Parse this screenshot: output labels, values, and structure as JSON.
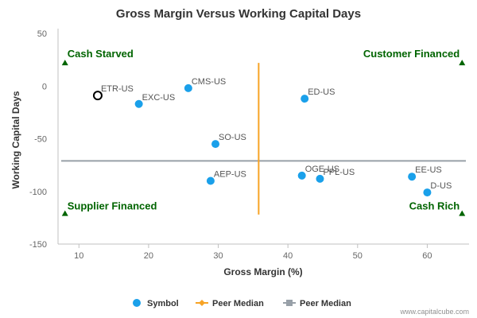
{
  "chart_data": {
    "type": "scatter",
    "title": "Gross Margin Versus Working Capital Days",
    "xlabel": "Gross Margin (%)",
    "ylabel": "Working Capital Days",
    "xlim": [
      7,
      66
    ],
    "ylim": [
      -150,
      50
    ],
    "xticks": [
      10,
      20,
      30,
      40,
      50,
      60
    ],
    "yticks": [
      50,
      0,
      -50,
      -100,
      -150
    ],
    "grid": false,
    "legend_position": "bottom",
    "colors": {
      "point": "#1aa0ea",
      "highlight_stroke": "#000000",
      "x_median": "#f7a325",
      "y_median": "#98a0a8",
      "quadrant": "#006400"
    },
    "points": [
      {
        "label": "ETR-US",
        "x": 12.7,
        "y": -9,
        "highlight": true
      },
      {
        "label": "EXC-US",
        "x": 18.6,
        "y": -17
      },
      {
        "label": "CMS-US",
        "x": 25.7,
        "y": -2
      },
      {
        "label": "ED-US",
        "x": 42.4,
        "y": -12
      },
      {
        "label": "SO-US",
        "x": 29.6,
        "y": -55
      },
      {
        "label": "AEP-US",
        "x": 28.9,
        "y": -90
      },
      {
        "label": "OGE-US",
        "x": 42.0,
        "y": -85
      },
      {
        "label": "PPL-US",
        "x": 44.6,
        "y": -88
      },
      {
        "label": "EE-US",
        "x": 57.8,
        "y": -86
      },
      {
        "label": "D-US",
        "x": 60.0,
        "y": -101
      }
    ],
    "peer_median_x": 35.8,
    "peer_median_y": -71,
    "quadrants": [
      {
        "label": "Cash Starved",
        "x": 8,
        "y": 22
      },
      {
        "label": "Customer Financed",
        "x": 65,
        "y": 22
      },
      {
        "label": "Supplier Financed",
        "x": 8,
        "y": -121
      },
      {
        "label": "Cash Rich",
        "x": 65,
        "y": -121
      }
    ],
    "legend": [
      {
        "name": "Symbol",
        "marker": "circle"
      },
      {
        "name": "Peer Median",
        "marker": "diamond"
      },
      {
        "name": "Peer Median",
        "marker": "square"
      }
    ]
  },
  "credit": "www.capitalcube.com"
}
